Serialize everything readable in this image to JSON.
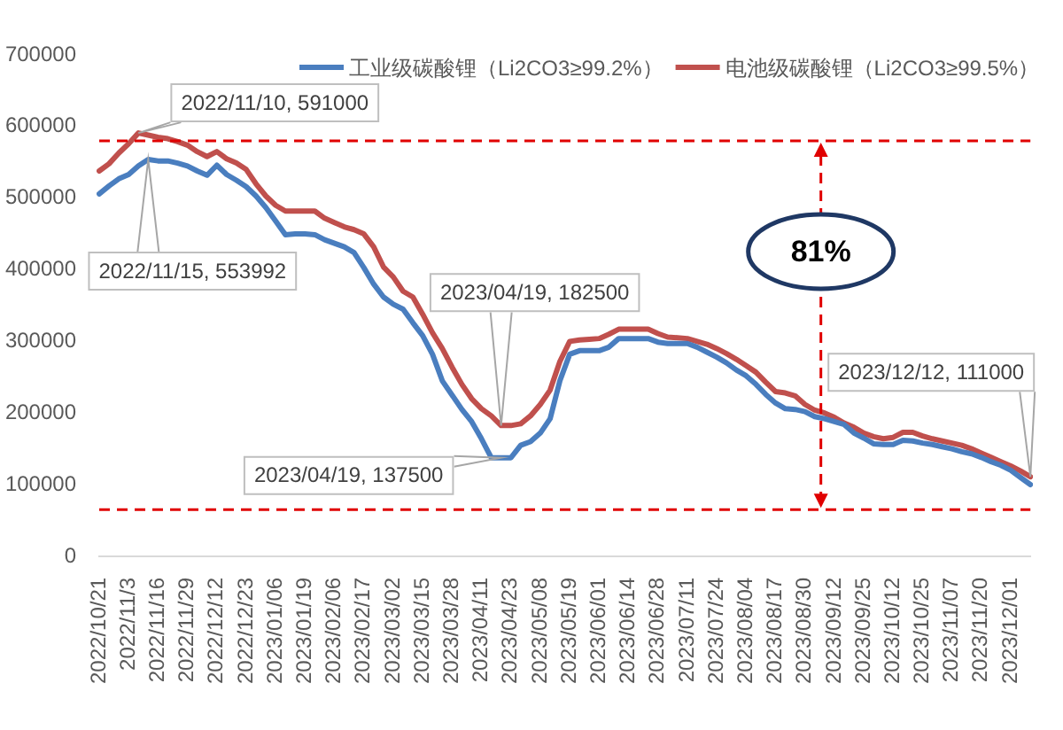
{
  "chart_data": {
    "type": "line",
    "categories": [
      "2022/10/21",
      null,
      null,
      "2022/11/3",
      null,
      null,
      "2022/11/16",
      null,
      null,
      "2022/11/29",
      null,
      null,
      "2022/12/12",
      null,
      null,
      "2022/12/23",
      null,
      null,
      "2023/01/06",
      null,
      null,
      "2023/01/19",
      null,
      null,
      "2023/02/06",
      null,
      null,
      "2023/02/17",
      null,
      null,
      "2023/03/02",
      null,
      null,
      "2023/03/15",
      null,
      null,
      "2023/03/28",
      null,
      null,
      "2023/04/11",
      null,
      null,
      "2023/04/23",
      null,
      null,
      "2023/05/08",
      null,
      null,
      "2023/05/19",
      null,
      null,
      "2023/06/01",
      null,
      null,
      "2023/06/14",
      null,
      null,
      "2023/06/28",
      null,
      null,
      "2023/07/11",
      null,
      null,
      "2023/07/24",
      null,
      null,
      "2023/08/04",
      null,
      null,
      "2023/08/17",
      null,
      null,
      "2023/08/30",
      null,
      null,
      "2023/09/12",
      null,
      null,
      "2023/09/25",
      null,
      null,
      "2023/10/12",
      null,
      null,
      "2023/10/25",
      null,
      null,
      "2023/11/07",
      null,
      null,
      "2023/11/20",
      null,
      null,
      "2023/12/01",
      null,
      null
    ],
    "series": [
      {
        "name": "工业级碳酸锂（Li2CO3≥99.2%）",
        "color": "#4a7ebf",
        "values": [
          506000,
          517000,
          527000,
          533000,
          545000,
          553992,
          552000,
          552000,
          549000,
          545000,
          538000,
          532000,
          546000,
          533000,
          525000,
          516000,
          503000,
          487000,
          468000,
          449000,
          450000,
          450000,
          449000,
          442000,
          437000,
          432000,
          424000,
          403000,
          380000,
          362000,
          352000,
          345000,
          326000,
          308000,
          282000,
          245000,
          225000,
          205000,
          188000,
          164000,
          137500,
          137500,
          137500,
          155000,
          160000,
          172000,
          192000,
          245000,
          282000,
          287000,
          287000,
          287000,
          292000,
          304000,
          304000,
          304000,
          304000,
          299000,
          297000,
          297000,
          297000,
          292000,
          285000,
          278000,
          270000,
          260000,
          252000,
          240000,
          226000,
          214000,
          206000,
          205000,
          202000,
          195000,
          192000,
          188000,
          184000,
          172000,
          165000,
          157000,
          156000,
          156000,
          162000,
          161000,
          158000,
          156000,
          153000,
          150000,
          146000,
          143000,
          138000,
          132000,
          127000,
          120000,
          110000,
          100000
        ]
      },
      {
        "name": "电池级碳酸锂（Li2CO3≥99.5%）",
        "color": "#c0504d",
        "values": [
          538000,
          548000,
          563000,
          576000,
          591000,
          588000,
          585000,
          583000,
          579000,
          574000,
          565000,
          558000,
          565000,
          555000,
          549000,
          540000,
          520000,
          503000,
          490000,
          482000,
          482000,
          482000,
          482000,
          472000,
          466000,
          460000,
          456000,
          450000,
          432000,
          404000,
          390000,
          370000,
          362000,
          338000,
          312000,
          290000,
          264000,
          240000,
          220000,
          206000,
          196000,
          182500,
          182500,
          185000,
          196000,
          212000,
          232000,
          272000,
          300000,
          302000,
          303000,
          304000,
          310000,
          317000,
          317000,
          317000,
          317000,
          311000,
          306000,
          305000,
          304000,
          300000,
          296000,
          290000,
          283000,
          275000,
          266000,
          257000,
          243000,
          230000,
          228000,
          224000,
          212000,
          204000,
          200000,
          194000,
          186000,
          180000,
          172000,
          167000,
          164000,
          166000,
          173000,
          173000,
          168000,
          164000,
          161000,
          158000,
          155000,
          150000,
          144000,
          138000,
          132000,
          126000,
          119000,
          111000
        ]
      }
    ],
    "ylim": [
      0,
      700000
    ],
    "yticks": [
      0,
      100000,
      200000,
      300000,
      400000,
      500000,
      600000,
      700000
    ],
    "legend": "top right",
    "ref_lines": [
      {
        "axis": "y",
        "value": 580000,
        "color": "#e00000",
        "line_style": "dashed"
      },
      {
        "axis": "y",
        "value": 65000,
        "color": "#e00000",
        "line_style": "dashed"
      }
    ],
    "annotations": [
      "2022/11/10, 591000",
      "2022/11/15, 553992",
      "2023/04/19, 182500",
      "2023/04/19, 137500",
      "2023/12/12, 111000",
      "81%"
    ]
  }
}
